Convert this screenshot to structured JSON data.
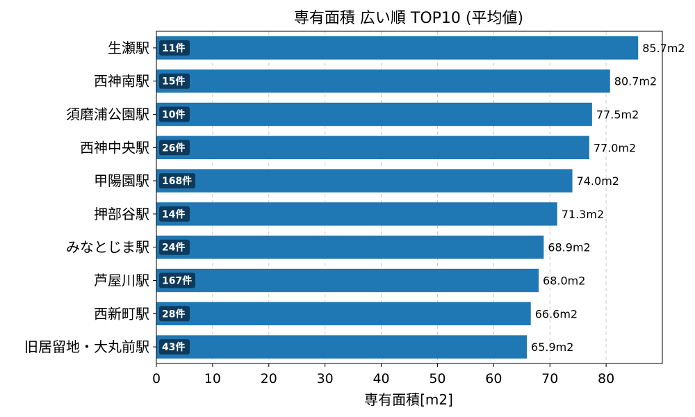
{
  "chart_data": {
    "type": "bar",
    "orientation": "horizontal",
    "title": "専有面積 広い順 TOP10 (平均値)",
    "xlabel": "専有面積[m2]",
    "ylabel": "",
    "xlim": [
      0,
      90
    ],
    "xticks": [
      0,
      10,
      20,
      30,
      40,
      50,
      60,
      70,
      80
    ],
    "grid": true,
    "categories": [
      "生瀬駅",
      "西神南駅",
      "須磨浦公園駅",
      "西神中央駅",
      "甲陽園駅",
      "押部谷駅",
      "みなとじま駅",
      "芦屋川駅",
      "西新町駅",
      "旧居留地・大丸前駅"
    ],
    "values": [
      85.7,
      80.7,
      77.5,
      77.0,
      74.0,
      71.3,
      68.9,
      68.0,
      66.6,
      65.9
    ],
    "value_labels": [
      "85.7m2",
      "80.7m2",
      "77.5m2",
      "77.0m2",
      "74.0m2",
      "71.3m2",
      "68.9m2",
      "68.0m2",
      "66.6m2",
      "65.9m2"
    ],
    "count_labels": [
      "11件",
      "15件",
      "10件",
      "26件",
      "168件",
      "14件",
      "24件",
      "167件",
      "28件",
      "43件"
    ],
    "colors": {
      "bar": "#1f77b4",
      "badge": "#0d3a5c",
      "grid": "#cccccc"
    }
  }
}
